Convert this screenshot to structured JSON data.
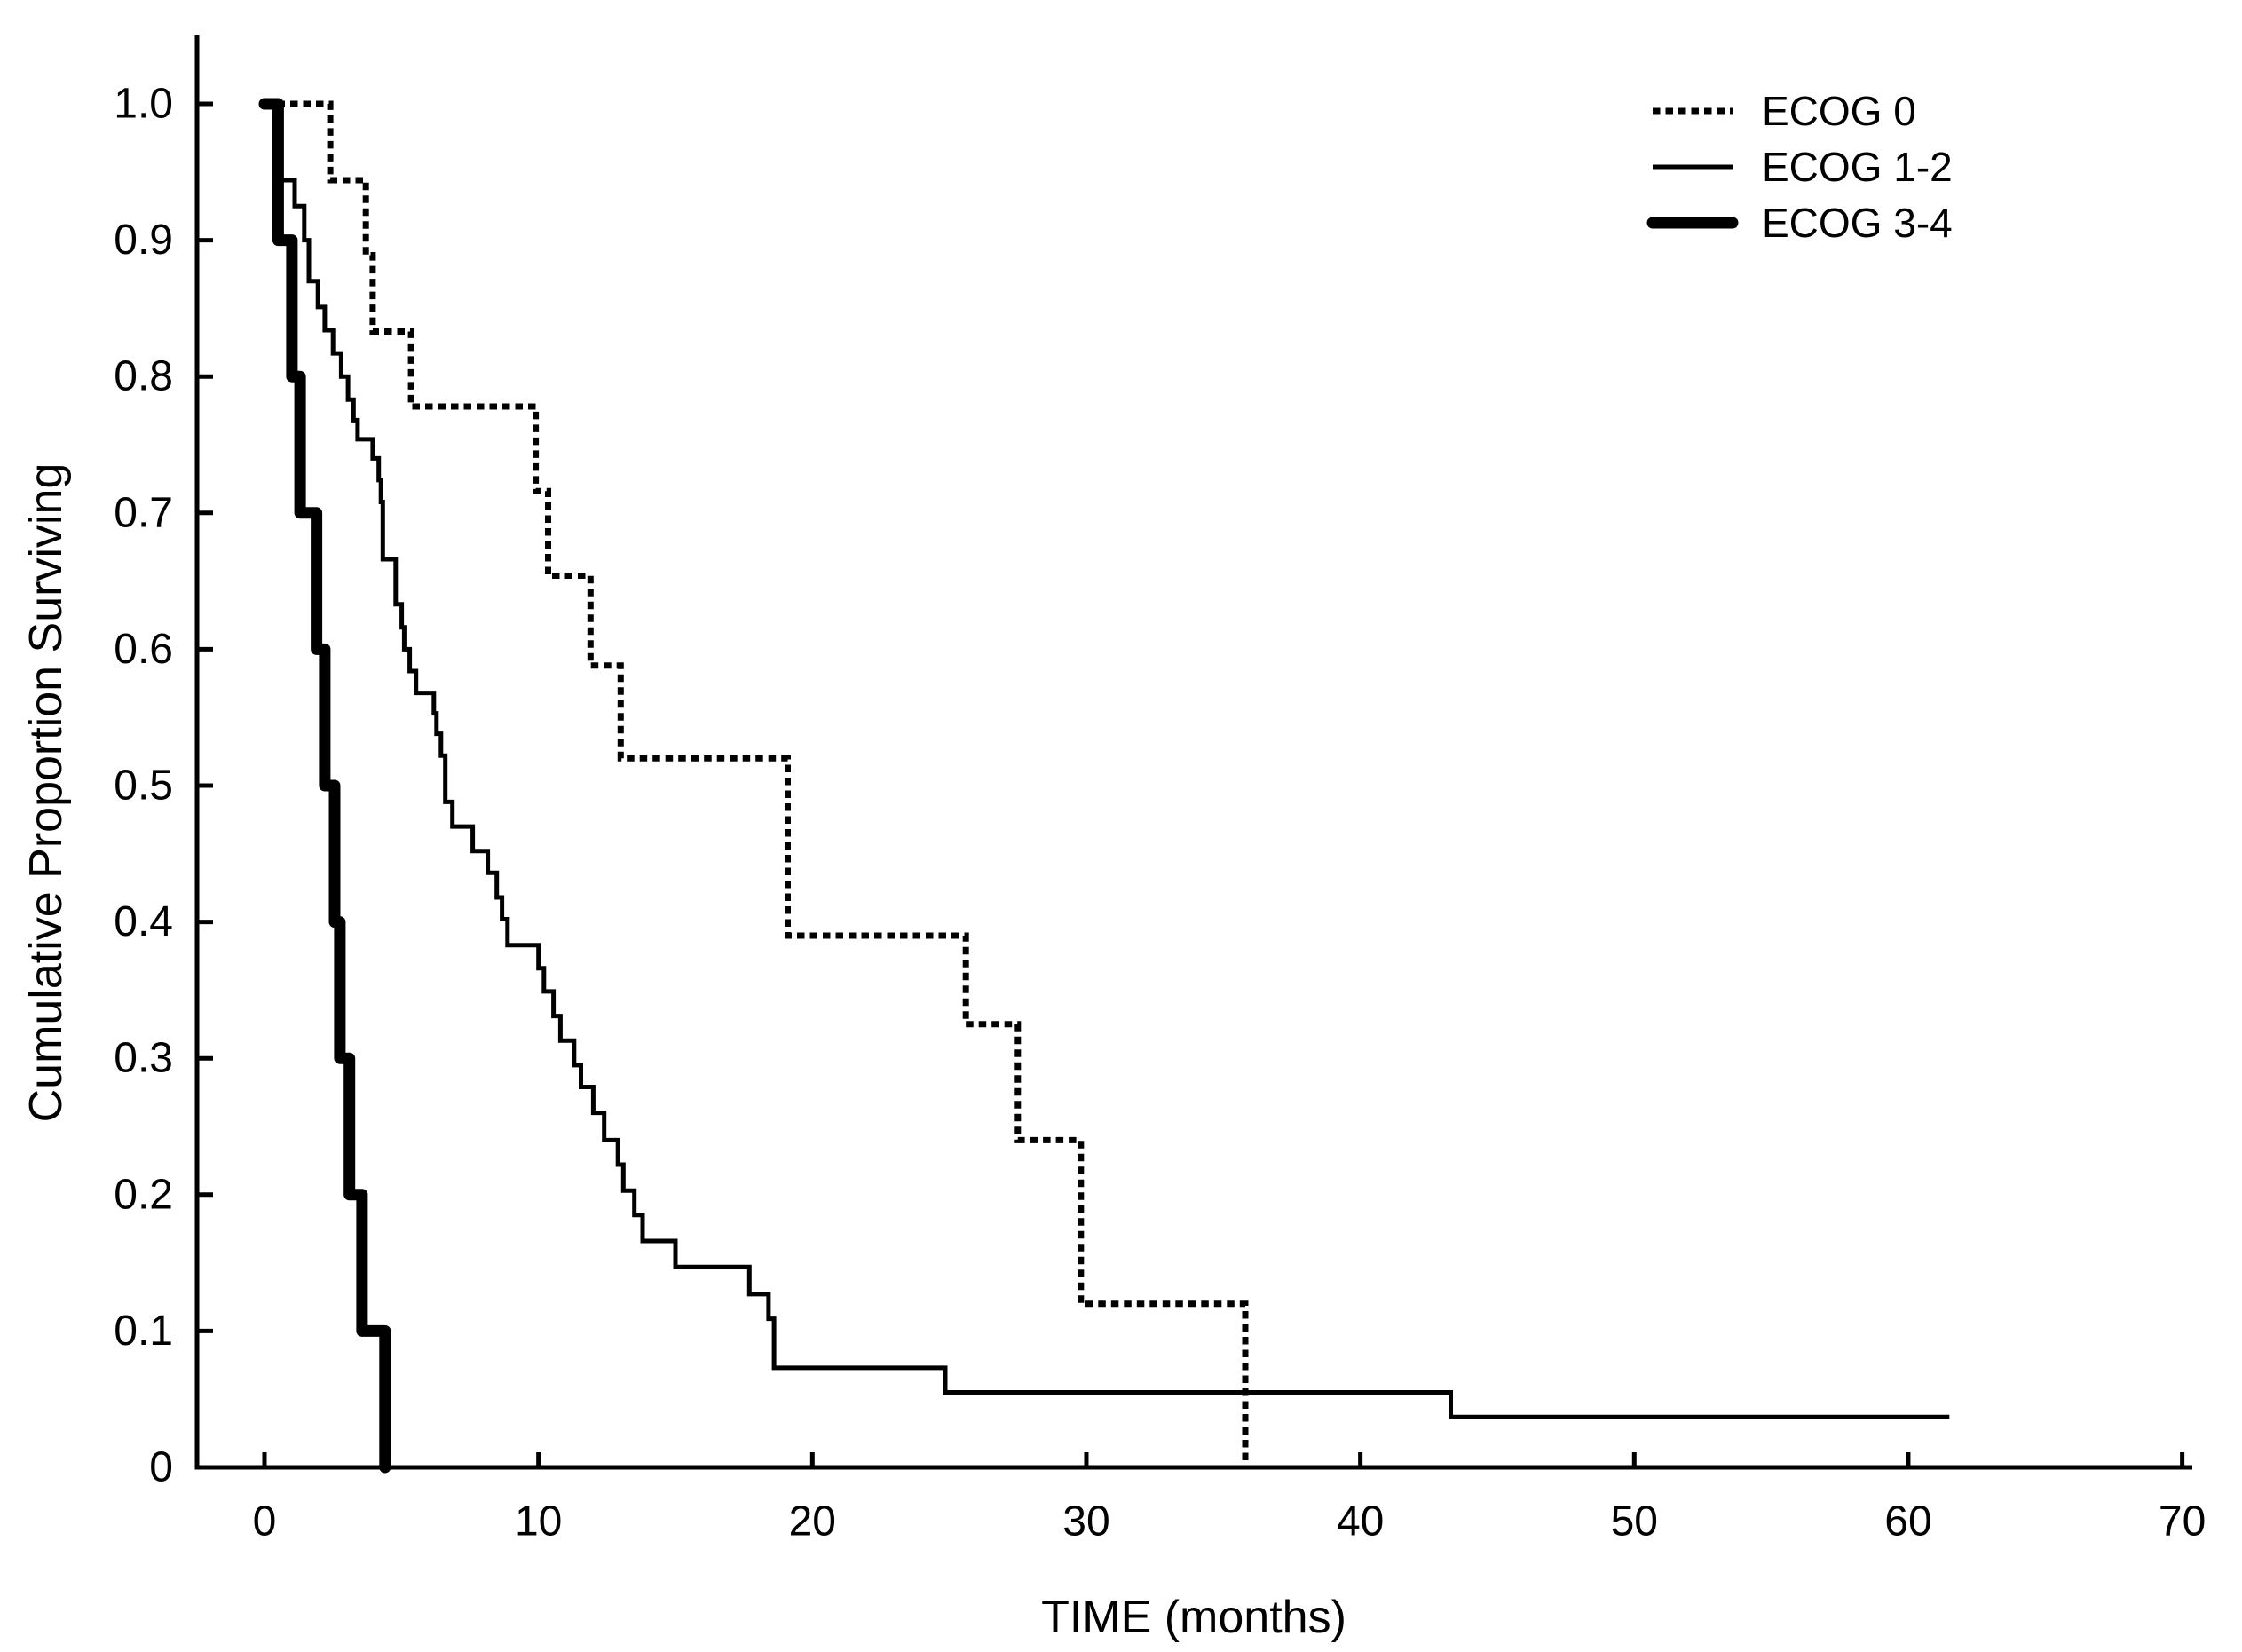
{
  "figure": {
    "background": "#ffffff",
    "line_color": "#000000"
  },
  "chart_data": {
    "type": "line",
    "subtype": "kaplan-meier-step",
    "title": "",
    "xlabel": "TIME (months)",
    "ylabel": "Cumulative Proportion Surviving",
    "xlim": [
      -2.6,
      70.5
    ],
    "ylim": [
      0,
      1.05
    ],
    "grid": false,
    "legend_position": "top-right",
    "x_ticks": [
      0,
      10,
      20,
      30,
      40,
      50,
      60,
      70
    ],
    "y_ticks": [
      {
        "label": "1.0",
        "value": 1.0
      },
      {
        "label": "0.9",
        "value": 0.9
      },
      {
        "label": "0.8",
        "value": 0.8
      },
      {
        "label": "0.7",
        "value": 0.7
      },
      {
        "label": "0.6",
        "value": 0.6
      },
      {
        "label": "0.5",
        "value": 0.5
      },
      {
        "label": "0.4",
        "value": 0.4
      },
      {
        "label": "0.3",
        "value": 0.3
      },
      {
        "label": "0.2",
        "value": 0.2
      },
      {
        "label": "0.1",
        "value": 0.1
      },
      {
        "label": "0",
        "value": 0.0
      }
    ],
    "series": [
      {
        "name": "ECOG 0",
        "style": "dotted",
        "width": "medium",
        "start": [
          0,
          1.0
        ],
        "steps": [
          [
            2.4,
            0.944
          ],
          [
            3.7,
            0.889
          ],
          [
            3.95,
            0.833
          ],
          [
            5.35,
            0.778
          ],
          [
            9.9,
            0.716
          ],
          [
            10.35,
            0.654
          ],
          [
            11.9,
            0.588
          ],
          [
            13.0,
            0.52
          ],
          [
            19.1,
            0.39
          ],
          [
            25.6,
            0.325
          ],
          [
            27.5,
            0.24
          ],
          [
            29.8,
            0.12
          ],
          [
            35.8,
            0.0
          ]
        ],
        "end_x": 35.8
      },
      {
        "name": "ECOG 1-2",
        "style": "solid",
        "width": "thin",
        "start": [
          0,
          1.0
        ],
        "steps": [
          [
            0.5,
            0.944
          ],
          [
            1.1,
            0.925
          ],
          [
            1.45,
            0.9
          ],
          [
            1.62,
            0.87
          ],
          [
            1.95,
            0.851
          ],
          [
            2.2,
            0.834
          ],
          [
            2.5,
            0.817
          ],
          [
            2.8,
            0.8
          ],
          [
            3.05,
            0.783
          ],
          [
            3.25,
            0.768
          ],
          [
            3.4,
            0.754
          ],
          [
            3.95,
            0.74
          ],
          [
            4.17,
            0.724
          ],
          [
            4.25,
            0.708
          ],
          [
            4.32,
            0.666
          ],
          [
            4.79,
            0.633
          ],
          [
            5.01,
            0.616
          ],
          [
            5.1,
            0.6
          ],
          [
            5.3,
            0.584
          ],
          [
            5.53,
            0.568
          ],
          [
            6.18,
            0.553
          ],
          [
            6.28,
            0.538
          ],
          [
            6.44,
            0.522
          ],
          [
            6.6,
            0.488
          ],
          [
            6.86,
            0.47
          ],
          [
            7.6,
            0.452
          ],
          [
            8.15,
            0.436
          ],
          [
            8.48,
            0.418
          ],
          [
            8.67,
            0.402
          ],
          [
            8.87,
            0.383
          ],
          [
            10.0,
            0.366
          ],
          [
            10.2,
            0.349
          ],
          [
            10.55,
            0.331
          ],
          [
            10.8,
            0.313
          ],
          [
            11.3,
            0.295
          ],
          [
            11.55,
            0.279
          ],
          [
            12.0,
            0.26
          ],
          [
            12.4,
            0.24
          ],
          [
            12.9,
            0.222
          ],
          [
            13.1,
            0.203
          ],
          [
            13.5,
            0.185
          ],
          [
            13.8,
            0.166
          ],
          [
            15.0,
            0.147
          ],
          [
            17.7,
            0.127
          ],
          [
            18.4,
            0.109
          ],
          [
            18.6,
            0.073
          ],
          [
            24.85,
            0.055
          ],
          [
            43.3,
            0.037
          ]
        ],
        "end_x": 61.5
      },
      {
        "name": "ECOG 3-4",
        "style": "solid",
        "width": "thick",
        "start": [
          0,
          1.0
        ],
        "steps": [
          [
            0.5,
            0.9
          ],
          [
            1.0,
            0.8
          ],
          [
            1.3,
            0.7
          ],
          [
            1.9,
            0.6
          ],
          [
            2.2,
            0.5
          ],
          [
            2.56,
            0.4
          ],
          [
            2.75,
            0.3
          ],
          [
            3.1,
            0.2
          ],
          [
            3.56,
            0.1
          ],
          [
            4.4,
            0.0
          ]
        ],
        "end_x": 4.4
      }
    ]
  },
  "legend": {
    "entries": [
      {
        "label": "ECOG 0",
        "line": "dotted-medium"
      },
      {
        "label": "ECOG 1-2",
        "line": "solid-thin"
      },
      {
        "label": "ECOG 3-4",
        "line": "solid-thick"
      }
    ]
  }
}
